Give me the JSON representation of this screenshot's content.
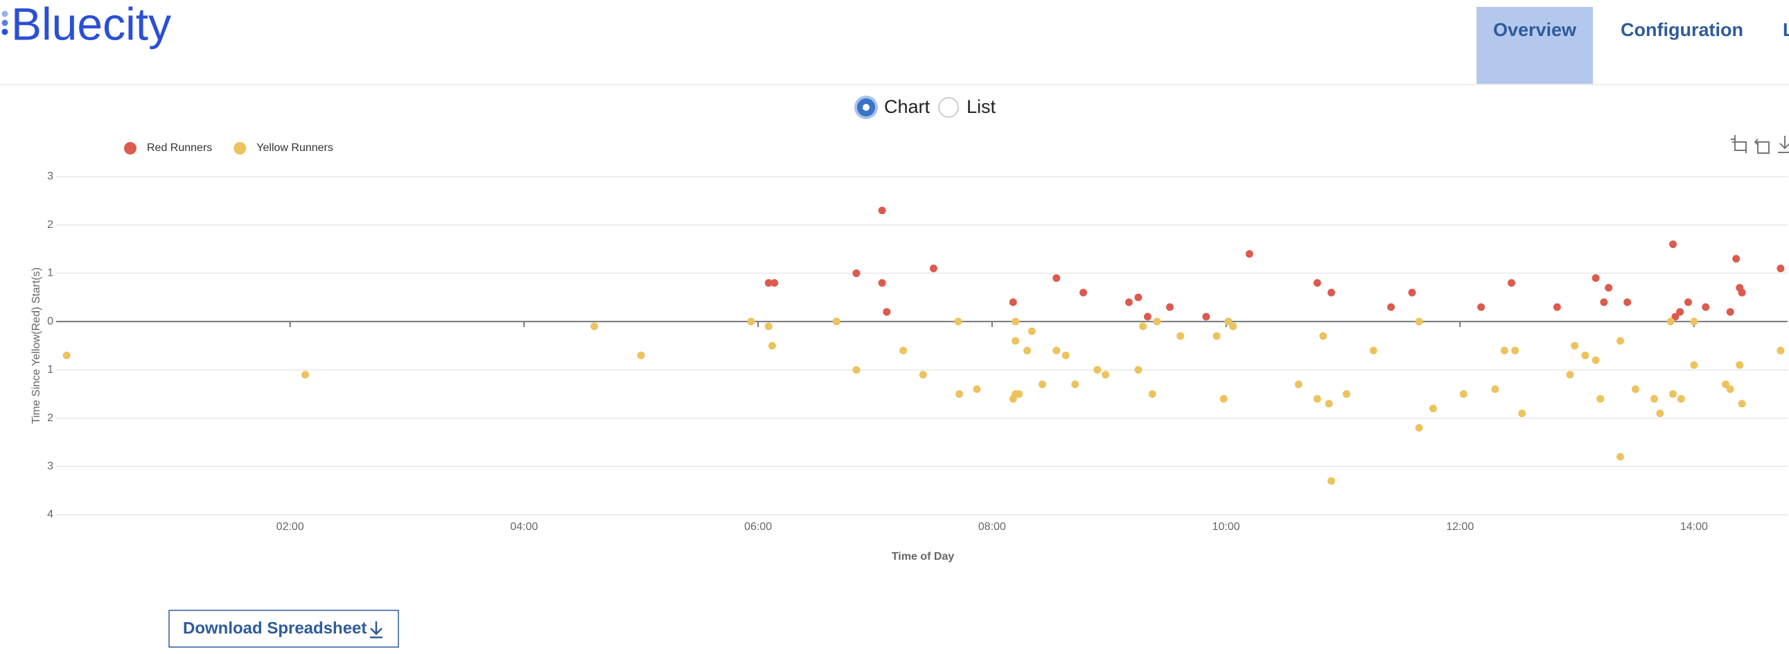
{
  "header": {
    "logo": "Bluecity",
    "nav": [
      "Overview",
      "Configuration",
      "L"
    ]
  },
  "view_toggle": {
    "options": [
      "Chart",
      "List"
    ]
  },
  "chart_data": {
    "type": "scatter",
    "x_label": "Time of Day",
    "y_label": "Time Since Yellow(Red) Start(s)",
    "xlim": [
      0,
      14.8
    ],
    "ylim": [
      -4,
      3
    ],
    "xticks": [
      {
        "value": 2,
        "label": "02:00"
      },
      {
        "value": 4,
        "label": "04:00"
      },
      {
        "value": 6,
        "label": "06:00"
      },
      {
        "value": 8,
        "label": "08:00"
      },
      {
        "value": 10,
        "label": "10:00"
      },
      {
        "value": 12,
        "label": "12:00"
      },
      {
        "value": 14,
        "label": "14:00"
      }
    ],
    "yticks": [
      3,
      2,
      1,
      0,
      {
        "value": -1,
        "label": "1"
      },
      {
        "value": -2,
        "label": "2"
      },
      {
        "value": -3,
        "label": "3"
      },
      {
        "value": -4,
        "label": "4"
      }
    ],
    "grid": true,
    "legend": "top-left",
    "series": [
      {
        "name": "Red Runners",
        "color": "#dc5a4e",
        "x": [
          6.09,
          6.14,
          6.84,
          7.06,
          7.06,
          7.1,
          7.5,
          8.18,
          8.55,
          8.78,
          9.17,
          9.25,
          9.33,
          9.52,
          9.83,
          10.2,
          10.78,
          10.9,
          11.41,
          11.59,
          12.18,
          12.44,
          12.83,
          13.16,
          13.23,
          13.27,
          13.43,
          13.82,
          13.84,
          13.88,
          13.95,
          14.1,
          14.31,
          14.36,
          14.39,
          14.41,
          14.74
        ],
        "values": [
          0.8,
          0.8,
          1.0,
          2.3,
          0.8,
          0.2,
          1.1,
          0.4,
          0.9,
          0.6,
          0.4,
          0.5,
          0.1,
          0.3,
          0.1,
          1.4,
          0.8,
          0.6,
          0.3,
          0.6,
          0.3,
          0.8,
          0.3,
          0.9,
          0.4,
          0.7,
          0.4,
          1.6,
          0.1,
          0.2,
          0.4,
          0.3,
          0.2,
          1.3,
          0.7,
          0.6,
          1.1
        ]
      },
      {
        "name": "Yellow Runners",
        "color": "#ecc35c",
        "x": [
          0.09,
          2.13,
          4.6,
          5.0,
          5.94,
          6.09,
          6.12,
          6.67,
          6.84,
          7.24,
          7.41,
          7.71,
          7.72,
          7.87,
          8.18,
          8.2,
          8.2,
          8.2,
          8.23,
          8.3,
          8.34,
          8.43,
          8.55,
          8.63,
          8.71,
          8.9,
          8.97,
          9.25,
          9.29,
          9.37,
          9.41,
          9.61,
          9.92,
          9.98,
          10.02,
          10.06,
          10.62,
          10.78,
          10.83,
          10.88,
          10.9,
          11.03,
          11.26,
          11.65,
          11.65,
          11.77,
          12.03,
          12.3,
          12.38,
          12.47,
          12.53,
          12.94,
          12.98,
          13.07,
          13.16,
          13.2,
          13.37,
          13.37,
          13.5,
          13.66,
          13.71,
          13.8,
          13.82,
          13.89,
          14.0,
          14.0,
          14.27,
          14.31,
          14.39,
          14.41,
          14.74
        ],
        "values": [
          -0.7,
          -1.1,
          -0.1,
          -0.7,
          0,
          -0.1,
          -0.5,
          0,
          -1.0,
          -0.6,
          -1.1,
          0,
          -1.5,
          -1.4,
          -1.6,
          -0.4,
          0,
          -1.5,
          -1.5,
          -0.6,
          -0.2,
          -1.3,
          -0.6,
          -0.7,
          -1.3,
          -1.0,
          -1.1,
          -1.0,
          -0.1,
          -1.5,
          0,
          -0.3,
          -0.3,
          -1.6,
          0,
          -0.1,
          -1.3,
          -1.6,
          -0.3,
          -1.7,
          -3.3,
          -1.5,
          -0.6,
          0,
          -2.2,
          -1.8,
          -1.5,
          -1.4,
          -0.6,
          -0.6,
          -1.9,
          -1.1,
          -0.5,
          -0.7,
          -0.8,
          -1.6,
          -0.4,
          -2.8,
          -1.4,
          -1.6,
          -1.9,
          0,
          -1.5,
          -1.6,
          0,
          -0.9,
          -1.3,
          -1.4,
          -0.9,
          -1.7,
          -0.6
        ]
      }
    ]
  },
  "download_button": "Download Spreadsheet"
}
